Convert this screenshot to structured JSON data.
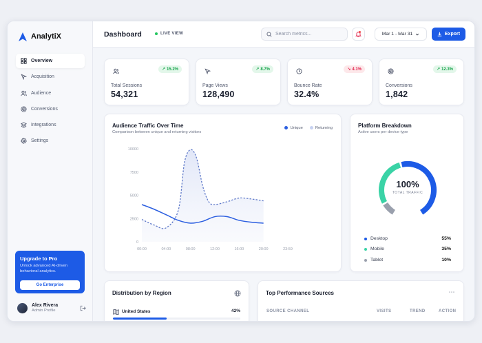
{
  "brand": {
    "name": "AnalytiX",
    "accent": "#1d5be6"
  },
  "sidebar": {
    "items": [
      {
        "label": "Overview",
        "icon": "grid-icon",
        "active": true
      },
      {
        "label": "Acquisition",
        "icon": "cursor-icon"
      },
      {
        "label": "Audience",
        "icon": "users-icon"
      },
      {
        "label": "Conversions",
        "icon": "target-icon"
      },
      {
        "label": "Integrations",
        "icon": "layers-icon"
      },
      {
        "label": "Settings",
        "icon": "gear-icon"
      }
    ],
    "promo": {
      "title": "Upgrade to Pro",
      "desc": "Unlock advanced AI-driven behavioral analytics.",
      "button": "Go Enterprise"
    },
    "profile": {
      "name": "Alex Rivera",
      "role": "Admin Profile"
    }
  },
  "header": {
    "title": "Dashboard",
    "live": "LIVE VIEW",
    "search_placeholder": "Search metrics...",
    "date_range": "Mar 1 - Mar 31",
    "export": "Export"
  },
  "stats": [
    {
      "label": "Total Sessions",
      "value": "54,321",
      "change": "15.2%",
      "trend": "up",
      "icon": "users-icon"
    },
    {
      "label": "Page Views",
      "value": "128,490",
      "change": "8.7%",
      "trend": "up",
      "icon": "cursor-icon"
    },
    {
      "label": "Bounce Rate",
      "value": "32.4%",
      "change": "4.1%",
      "trend": "down",
      "icon": "clock-icon"
    },
    {
      "label": "Conversions",
      "value": "1,842",
      "change": "12.3%",
      "trend": "up",
      "icon": "target-icon"
    }
  ],
  "traffic": {
    "title": "Audience Traffic Over Time",
    "subtitle": "Comparison between unique and returning visitors",
    "legend": {
      "unique": "Unique",
      "returning": "Returning"
    }
  },
  "chart_data": {
    "type": "line",
    "categories": [
      "00:00",
      "04:00",
      "08:00",
      "12:00",
      "16:00",
      "20:00",
      "23:59"
    ],
    "y_ticks": [
      "0",
      "2500",
      "5000",
      "7500",
      "10000"
    ],
    "ylim": [
      0,
      10000
    ],
    "x_extent": [
      0,
      24
    ],
    "series": [
      {
        "name": "Unique",
        "color": "#2c5fe0",
        "style": "solid",
        "points": [
          [
            0,
            4000
          ],
          [
            2,
            3500
          ],
          [
            4,
            2900
          ],
          [
            6,
            2300
          ],
          [
            8,
            2000
          ],
          [
            10,
            2200
          ],
          [
            12,
            2700
          ],
          [
            14,
            2700
          ],
          [
            16,
            2300
          ],
          [
            18,
            2100
          ],
          [
            20,
            2000
          ]
        ]
      },
      {
        "name": "Returning",
        "color": "#5f79c9",
        "style": "dashed",
        "points": [
          [
            0,
            2400
          ],
          [
            2,
            1800
          ],
          [
            4,
            1500
          ],
          [
            6,
            3400
          ],
          [
            7,
            8500
          ],
          [
            8,
            9900
          ],
          [
            9,
            9000
          ],
          [
            10,
            6000
          ],
          [
            11,
            4300
          ],
          [
            12,
            4000
          ],
          [
            14,
            4300
          ],
          [
            16,
            4700
          ],
          [
            18,
            4600
          ],
          [
            20,
            4400
          ]
        ]
      }
    ]
  },
  "platform": {
    "title": "Platform Breakdown",
    "subtitle": "Active users per device type",
    "center_value": "100%",
    "center_label": "TOTAL TRAFFIC",
    "devices": [
      {
        "label": "Desktop",
        "pct": "55%",
        "value": 55,
        "color": "#1d5be6"
      },
      {
        "label": "Mobile",
        "pct": "35%",
        "value": 35,
        "color": "#3ad3a6"
      },
      {
        "label": "Tablet",
        "pct": "10%",
        "value": 10,
        "color": "#9aa0ad"
      }
    ]
  },
  "region": {
    "title": "Distribution by Region",
    "rows": [
      {
        "country": "United States",
        "pct": "42%",
        "value": 42
      }
    ]
  },
  "sources": {
    "title": "Top Performance Sources",
    "columns": [
      "SOURCE CHANNEL",
      "VISITS",
      "TREND",
      "ACTION"
    ]
  }
}
